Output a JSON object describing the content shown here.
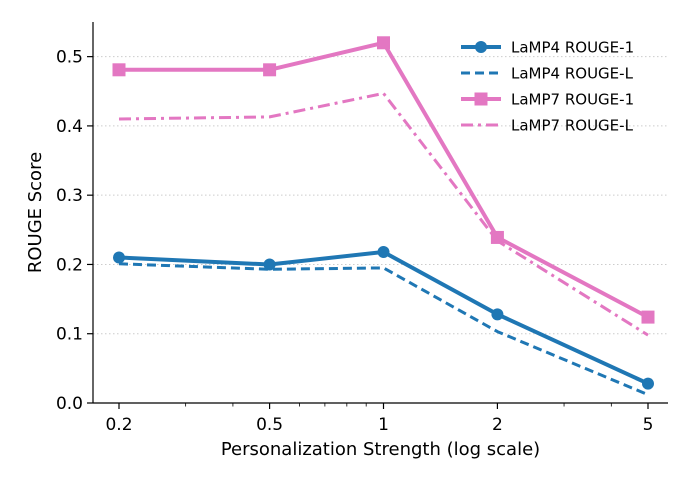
{
  "chart_data": {
    "type": "line",
    "title": "",
    "xlabel": "Personalization Strength (log scale)",
    "ylabel": "ROUGE Score",
    "xscale": "log",
    "x": [
      0.2,
      0.5,
      1,
      2,
      5
    ],
    "xtick_labels": [
      "0.2",
      "0.5",
      "1",
      "2",
      "5"
    ],
    "yticks": [
      0.0,
      0.1,
      0.2,
      0.3,
      0.4,
      0.5
    ],
    "ytick_labels": [
      "0.0",
      "0.1",
      "0.2",
      "0.3",
      "0.4",
      "0.5"
    ],
    "ylim": [
      0.0,
      0.55
    ],
    "grid": "horizontal dotted",
    "legend_position": "top-right",
    "series": [
      {
        "name": "LaMP4 ROUGE-1",
        "color": "#1f77b4",
        "style": "solid",
        "marker": "circle",
        "values": [
          0.21,
          0.2,
          0.218,
          0.128,
          0.028
        ]
      },
      {
        "name": "LaMP4 ROUGE-L",
        "color": "#1f77b4",
        "style": "dashed",
        "marker": "none",
        "values": [
          0.201,
          0.193,
          0.195,
          0.103,
          0.012
        ]
      },
      {
        "name": "LaMP7 ROUGE-1",
        "color": "#e377c2",
        "style": "solid",
        "marker": "square",
        "values": [
          0.481,
          0.481,
          0.52,
          0.239,
          0.124
        ]
      },
      {
        "name": "LaMP7 ROUGE-L",
        "color": "#e377c2",
        "style": "dashdot",
        "marker": "none",
        "values": [
          0.41,
          0.413,
          0.447,
          0.234,
          0.098
        ]
      }
    ]
  }
}
